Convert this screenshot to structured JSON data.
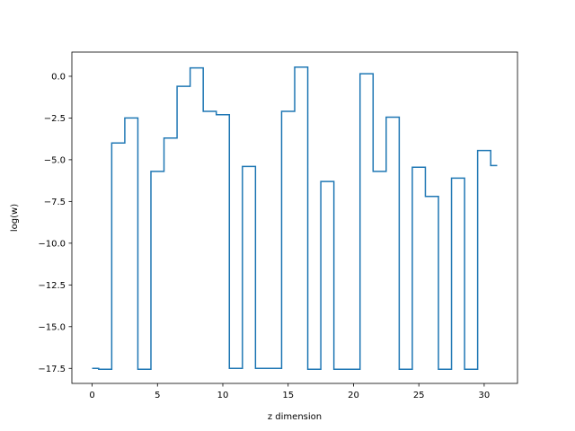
{
  "chart_data": {
    "type": "line",
    "drawstyle": "steps-mid",
    "title": "",
    "xlabel": "z dimension",
    "ylabel": "log(w)",
    "xlim": [
      -1.55,
      32.55
    ],
    "ylim": [
      -18.4,
      1.45
    ],
    "xticks": [
      0,
      5,
      10,
      15,
      20,
      25,
      30
    ],
    "yticks": [
      0.0,
      -2.5,
      -5.0,
      -7.5,
      -10.0,
      -12.5,
      -15.0,
      -17.5
    ],
    "xtick_labels": [
      "0",
      "5",
      "10",
      "15",
      "20",
      "25",
      "30"
    ],
    "ytick_labels": [
      "0.0",
      "−2.5",
      "−5.0",
      "−7.5",
      "−10.0",
      "−12.5",
      "−15.0",
      "−17.5"
    ],
    "grid": false,
    "legend": "none",
    "color": "#1f77b4",
    "series": [
      {
        "x": [
          0,
          1,
          2,
          3,
          4,
          5,
          6,
          7,
          8,
          9,
          10,
          11,
          12,
          13,
          14,
          15,
          16,
          17,
          18,
          19,
          20,
          21,
          22,
          23,
          24,
          25,
          26,
          27,
          28,
          29,
          30,
          31
        ],
        "y": [
          -17.5,
          -17.55,
          -4.0,
          -2.5,
          -17.55,
          -5.7,
          -3.7,
          -0.6,
          0.5,
          -2.1,
          -2.3,
          -17.5,
          -5.4,
          -17.5,
          -17.5,
          -2.1,
          0.55,
          -17.55,
          -6.3,
          -17.55,
          -17.55,
          0.15,
          -5.7,
          -2.45,
          -17.55,
          -5.45,
          -7.2,
          -17.55,
          -6.1,
          -17.55,
          -4.45,
          -5.35
        ]
      }
    ]
  }
}
